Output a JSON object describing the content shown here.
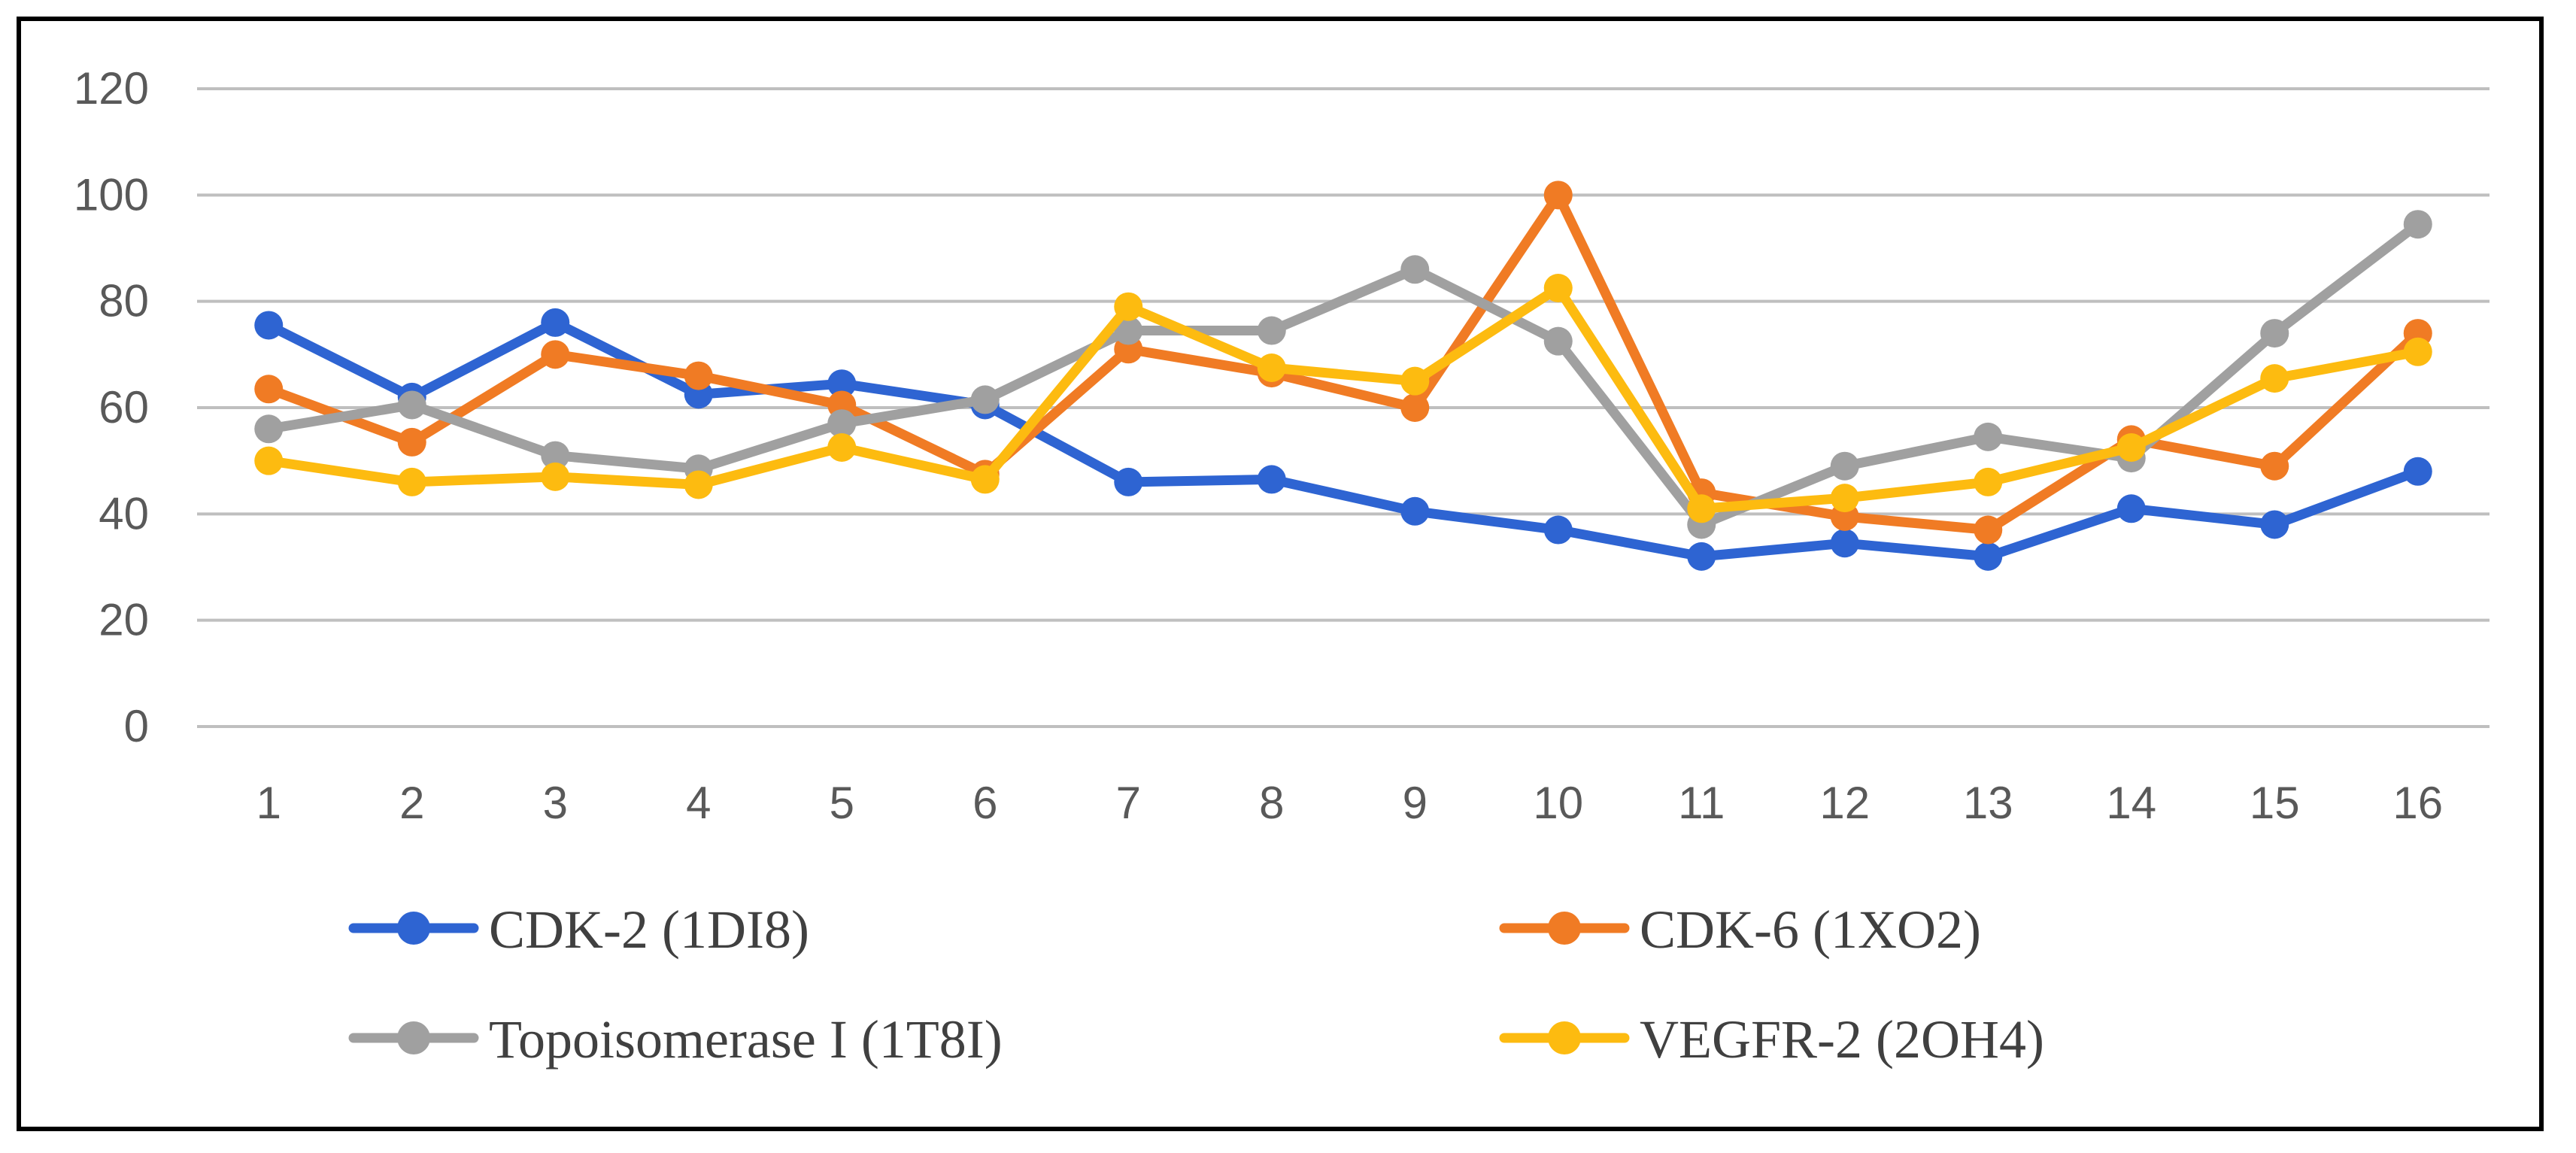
{
  "chart_data": {
    "type": "line",
    "title": "",
    "xlabel": "",
    "ylabel": "",
    "categories": [
      "1",
      "2",
      "3",
      "4",
      "5",
      "6",
      "7",
      "8",
      "9",
      "10",
      "11",
      "12",
      "13",
      "14",
      "15",
      "16"
    ],
    "ylim": [
      0,
      120
    ],
    "yticks": [
      0,
      20,
      40,
      60,
      80,
      100,
      120
    ],
    "grid": true,
    "legend_position": "bottom",
    "series": [
      {
        "name": "CDK-2 (1DI8)",
        "color": "#2E64D2",
        "values": [
          75.5,
          62,
          76,
          62.5,
          64.5,
          60.5,
          46,
          46.5,
          40.5,
          37,
          32,
          34.5,
          32,
          41,
          38,
          48
        ]
      },
      {
        "name": "CDK-6 (1XO2)",
        "color": "#F07B24",
        "values": [
          63.5,
          53.5,
          70,
          66,
          60.5,
          47.5,
          71,
          66.5,
          60,
          100,
          44,
          39.5,
          37,
          54,
          49,
          74
        ]
      },
      {
        "name": "Topoisomerase I (1T8I)",
        "color": "#A0A0A0",
        "values": [
          56,
          60.5,
          51,
          48.5,
          57,
          61.5,
          74.5,
          74.5,
          86,
          72.5,
          38,
          49,
          54.5,
          50.5,
          74,
          94.5
        ]
      },
      {
        "name": "VEGFR-2 (2OH4)",
        "color": "#FDBB10",
        "values": [
          50,
          46,
          47,
          45.5,
          52.5,
          46.5,
          79,
          67.5,
          65,
          82.5,
          41,
          43,
          46,
          52.5,
          65.5,
          70.5
        ]
      }
    ]
  }
}
